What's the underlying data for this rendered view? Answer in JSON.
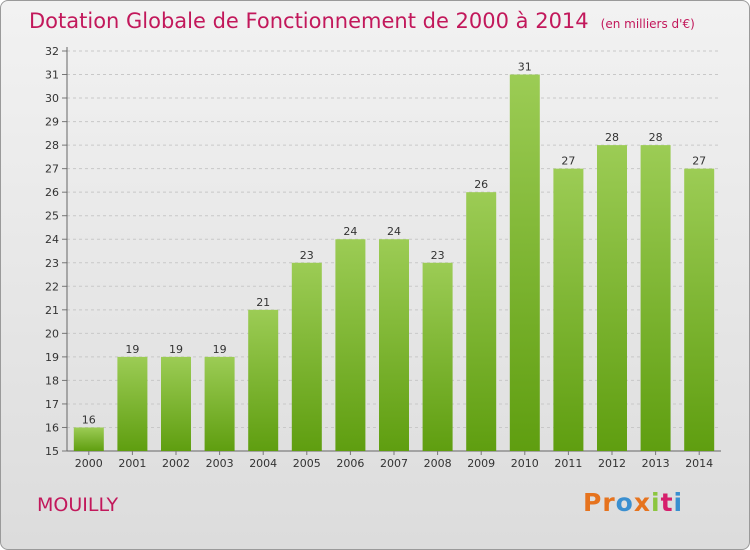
{
  "header": {
    "title": "Dotation Globale de Fonctionnement de 2000 à 2014",
    "subtitle": "(en milliers d'€)"
  },
  "footer": {
    "commune": "MOUILLY",
    "logo_text": "Proxiti",
    "logo_colors": [
      "#e6731e",
      "#e6731e",
      "#3a8fd0",
      "#e6731e",
      "#8cc63f",
      "#d61f6c",
      "#3a8fd0"
    ]
  },
  "colors": {
    "bar_top": "#9ccc55",
    "bar_bottom": "#5f9e10",
    "accent": "#c2185b"
  },
  "chart_data": {
    "type": "bar",
    "categories": [
      "2000",
      "2001",
      "2002",
      "2003",
      "2004",
      "2005",
      "2006",
      "2007",
      "2008",
      "2009",
      "2010",
      "2011",
      "2012",
      "2013",
      "2014"
    ],
    "values": [
      16,
      19,
      19,
      19,
      21,
      23,
      24,
      24,
      23,
      26,
      31,
      27,
      28,
      28,
      27
    ],
    "title": "Dotation Globale de Fonctionnement de 2000 à 2014",
    "subtitle": "(en milliers d'€)",
    "ylim": [
      15,
      32
    ],
    "yticks": [
      15,
      16,
      17,
      18,
      19,
      20,
      21,
      22,
      23,
      24,
      25,
      26,
      27,
      28,
      29,
      30,
      31,
      32
    ],
    "grid": true,
    "data_labels": true
  }
}
